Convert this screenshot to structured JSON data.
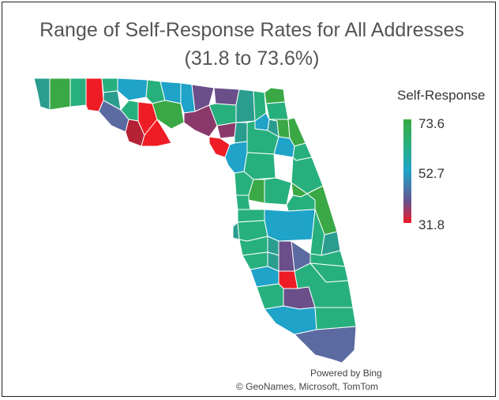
{
  "title_line1": "Range of Self-Response Rates for All Addresses",
  "title_line2": "(31.8 to 73.6%)",
  "legend": {
    "title": "Self-Response",
    "max": "73.6",
    "mid": "52.7",
    "min": "31.8"
  },
  "attribution": {
    "powered_by": "Powered by Bing",
    "copyright": "© GeoNames, Microsoft, TomTom"
  },
  "colors": {
    "high": "#3aa845",
    "high_mid": "#27b07e",
    "mid": "#1fa3c8",
    "low_mid": "#6a4f8a",
    "low": "#ee1c24"
  }
}
